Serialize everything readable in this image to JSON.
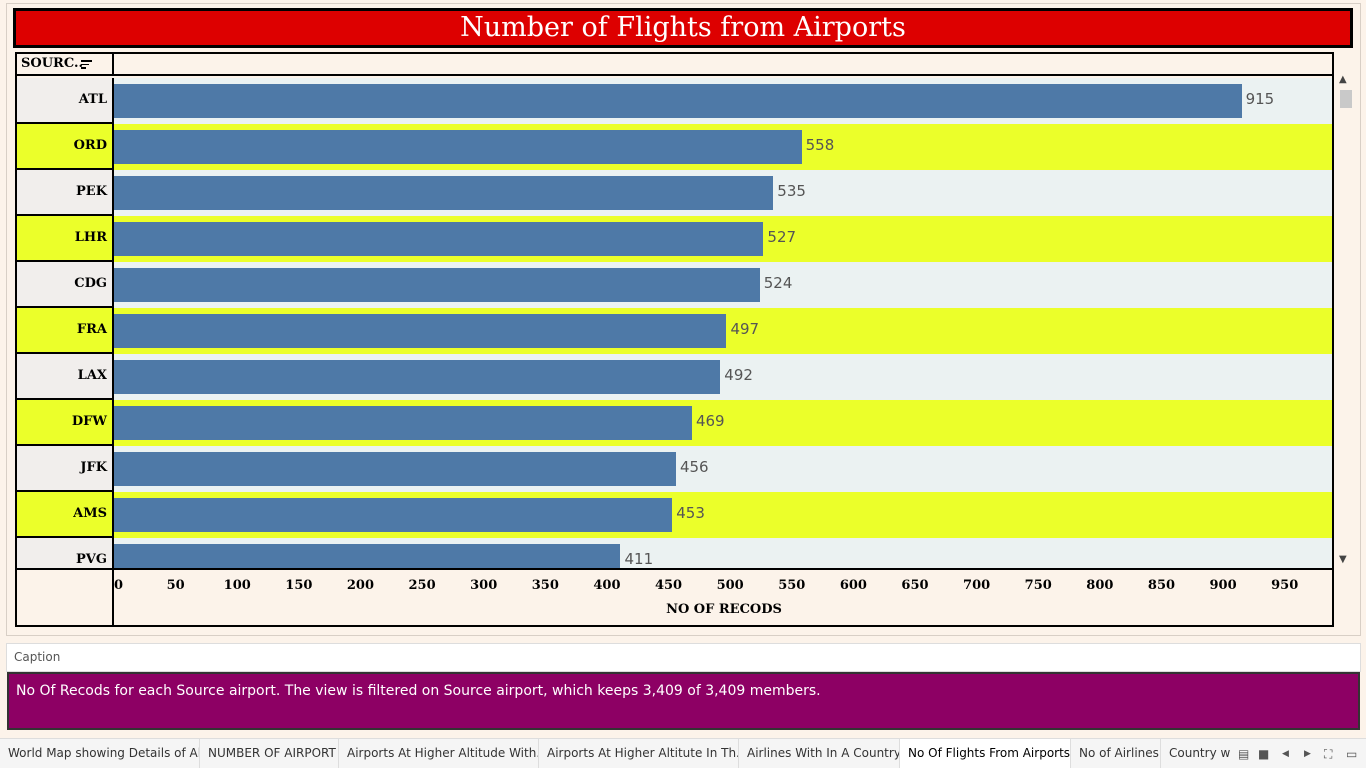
{
  "title": "Number of Flights from Airports",
  "header_label": "SOURC..",
  "chart_data": {
    "type": "bar",
    "orientation": "horizontal",
    "title": "Number of Flights from Airports",
    "ylabel": "SOURC..",
    "xlabel": "NO OF RECODS",
    "categories": [
      "ATL",
      "ORD",
      "PEK",
      "LHR",
      "CDG",
      "FRA",
      "LAX",
      "DFW",
      "JFK",
      "AMS",
      "PVG"
    ],
    "values": [
      915,
      558,
      535,
      527,
      524,
      497,
      492,
      469,
      456,
      453,
      411
    ],
    "value_labels": [
      "915",
      "558",
      "535",
      "527",
      "524",
      "497",
      "492",
      "469",
      "456",
      "453",
      "411"
    ],
    "xlim": [
      0,
      990
    ],
    "xticks": [
      "0",
      "50",
      "100",
      "150",
      "200",
      "250",
      "300",
      "350",
      "400",
      "450",
      "500",
      "550",
      "600",
      "650",
      "700",
      "750",
      "800",
      "850",
      "900",
      "950"
    ],
    "colors": {
      "bar": "#4e79a7",
      "band_even": "#ebf2f2",
      "band_odd": "#ebff2a"
    }
  },
  "caption": {
    "label": "Caption",
    "text": "No Of Recods for each Source airport. The view is filtered on Source airport, which keeps 3,409 of 3,409 members."
  },
  "tabs": [
    {
      "label": "World Map showing Details of Al...",
      "active": false
    },
    {
      "label": "NUMBER OF AIRPORT",
      "active": false
    },
    {
      "label": "Airports At Higher Altitude  With...",
      "active": false
    },
    {
      "label": "Airports At Higher Altitute In Th...",
      "active": false
    },
    {
      "label": "Airlines With In A Country",
      "active": false
    },
    {
      "label": "No Of Flights From Airports",
      "active": true
    },
    {
      "label": "No of Airlines",
      "active": false
    },
    {
      "label": "Country w",
      "active": false
    }
  ],
  "icons": {
    "sort": "sort-descending-icon",
    "scroll_up": "chevron-up-icon",
    "scroll_down": "chevron-down-icon",
    "grid": "grid-view-icon",
    "square": "single-view-icon",
    "prev": "prev-tab-icon",
    "next": "next-tab-icon",
    "fullscreen": "fullscreen-icon",
    "present": "presentation-icon"
  }
}
